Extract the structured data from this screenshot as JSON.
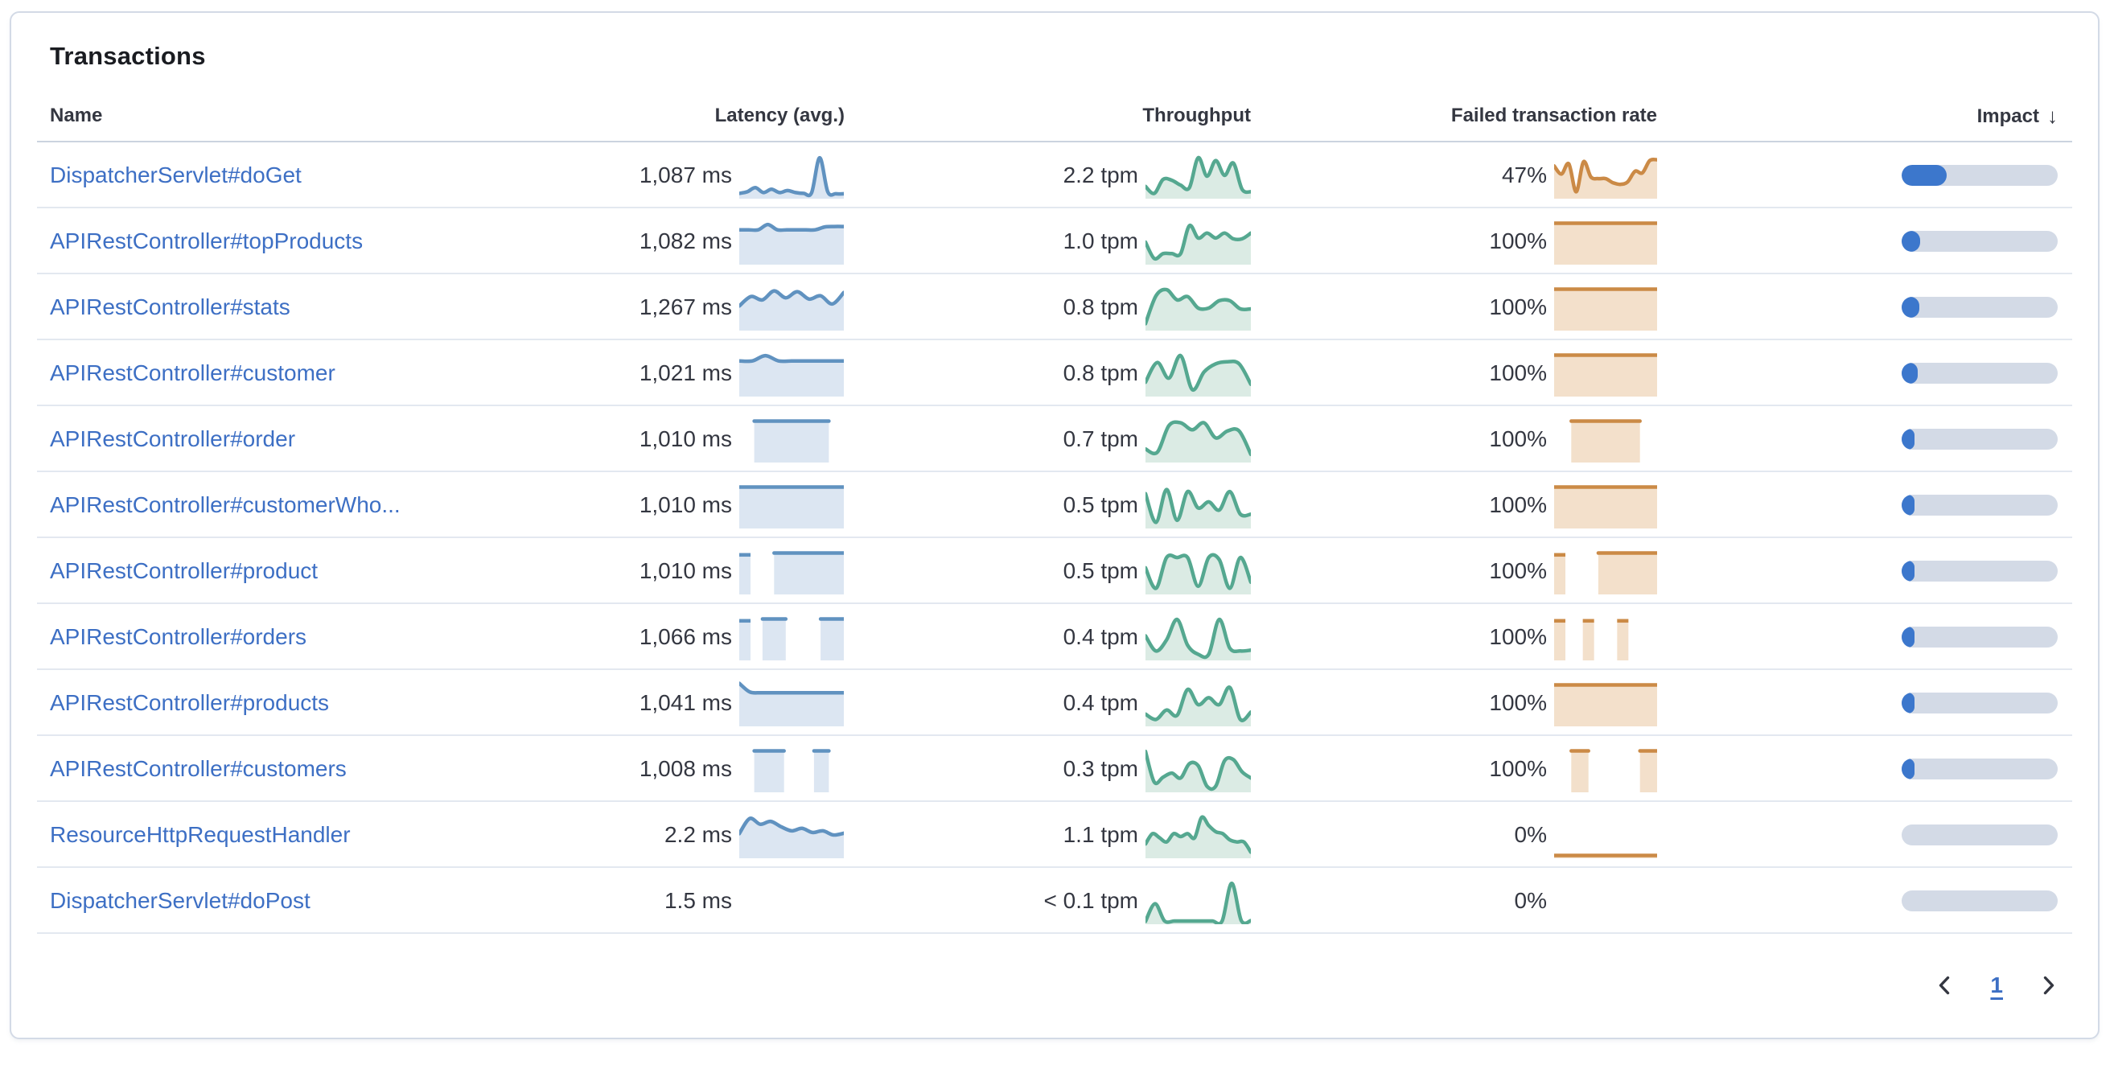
{
  "panel": {
    "title": "Transactions"
  },
  "table": {
    "columns": {
      "name": "Name",
      "latency": "Latency (avg.)",
      "throughput": "Throughput",
      "failed_rate": "Failed transaction rate",
      "impact": "Impact"
    },
    "sort": {
      "column": "impact",
      "direction": "desc",
      "icon": "sort-descending-icon",
      "arrow_glyph": "↓"
    },
    "rows": [
      {
        "name": "DispatcherServlet#doGet",
        "latency": "1,087 ms",
        "latency_spark": [
          0.08,
          0.12,
          0.22,
          0.1,
          0.18,
          0.1,
          0.15,
          0.1,
          0.08,
          0.1,
          0.95,
          0.12,
          0.07,
          0.07
        ],
        "throughput": "2.2 tpm",
        "throughput_spark": [
          0.25,
          0.08,
          0.42,
          0.4,
          0.28,
          0.22,
          0.95,
          0.5,
          0.88,
          0.52,
          0.82,
          0.18,
          0.12
        ],
        "failed_rate": "47%",
        "failed_rate_spark": [
          0.75,
          0.55,
          0.8,
          0.12,
          0.85,
          0.48,
          0.44,
          0.44,
          0.34,
          0.3,
          0.36,
          0.62,
          0.58,
          0.88,
          0.9
        ],
        "impact_pct": 29
      },
      {
        "name": "APIRestController#topProducts",
        "latency": "1,082 ms",
        "latency_spark": [
          0.8,
          0.8,
          0.8,
          0.93,
          0.8,
          0.8,
          0.8,
          0.8,
          0.8,
          0.87,
          0.88,
          0.88
        ],
        "throughput": "1.0 tpm",
        "throughput_spark": [
          0.5,
          0.1,
          0.22,
          0.22,
          0.22,
          0.9,
          0.6,
          0.72,
          0.6,
          0.72,
          0.58,
          0.58,
          0.72
        ],
        "failed_rate": "100%",
        "failed_rate_spark": [
          0.96,
          0.96,
          0.96,
          0.96,
          0.96,
          0.96,
          0.96,
          0.96,
          0.96,
          0.96
        ],
        "impact_pct": 12
      },
      {
        "name": "APIRestController#stats",
        "latency": "1,267 ms",
        "latency_spark": [
          0.55,
          0.78,
          0.7,
          0.92,
          0.75,
          0.9,
          0.72,
          0.8,
          0.6,
          0.88
        ],
        "throughput": "0.8 tpm",
        "throughput_spark": [
          0.12,
          0.8,
          0.95,
          0.7,
          0.78,
          0.5,
          0.5,
          0.68,
          0.68,
          0.48,
          0.48
        ],
        "failed_rate": "100%",
        "failed_rate_spark": [
          0.96,
          0.96,
          0.96,
          0.96,
          0.96,
          0.96,
          0.96,
          0.96,
          0.96,
          0.96
        ],
        "impact_pct": 11.5
      },
      {
        "name": "APIRestController#customer",
        "latency": "1,021 ms",
        "latency_spark": [
          0.82,
          0.82,
          0.95,
          0.82,
          0.82,
          0.82,
          0.82,
          0.82,
          0.82
        ],
        "throughput": "0.8 tpm",
        "throughput_spark": [
          0.3,
          0.78,
          0.4,
          0.95,
          0.12,
          0.55,
          0.75,
          0.8,
          0.75,
          0.25
        ],
        "failed_rate": "100%",
        "failed_rate_spark": [
          0.96,
          0.96,
          0.96,
          0.96,
          0.96,
          0.96,
          0.96,
          0.96,
          0.96,
          0.96
        ],
        "impact_pct": 10.5
      },
      {
        "name": "APIRestController#order",
        "latency": "1,010 ms",
        "latency_spark": [
          null,
          0.96,
          0.96,
          0.96,
          0.96,
          0.96,
          0.96,
          null
        ],
        "throughput": "0.7 tpm",
        "throughput_spark": [
          0.28,
          0.2,
          0.85,
          0.92,
          0.75,
          0.92,
          0.55,
          0.72,
          0.72,
          0.15
        ],
        "failed_rate": "100%",
        "failed_rate_spark": [
          null,
          0.96,
          0.96,
          0.96,
          0.96,
          0.96,
          null
        ],
        "impact_pct": 8.5
      },
      {
        "name": "APIRestController#customerWho...",
        "latency": "1,010 ms",
        "latency_spark": [
          0.96,
          0.96,
          0.96,
          0.96,
          0.96,
          0.96,
          0.96,
          0.96
        ],
        "throughput": "0.5 tpm",
        "throughput_spark": [
          0.8,
          0.1,
          0.9,
          0.15,
          0.85,
          0.45,
          0.6,
          0.4,
          0.85,
          0.3,
          0.3
        ],
        "failed_rate": "100%",
        "failed_rate_spark": [
          0.96,
          0.96,
          0.96,
          0.96,
          0.96,
          0.96,
          0.96,
          0.96,
          0.96,
          0.96
        ],
        "impact_pct": 6.5
      },
      {
        "name": "APIRestController#product",
        "latency": "1,010 ms",
        "latency_spark": [
          0.96,
          null,
          null,
          0.96,
          0.96,
          0.96,
          0.96,
          0.96,
          0.96,
          0.96
        ],
        "throughput": "0.5 tpm",
        "throughput_spark": [
          0.6,
          0.1,
          0.85,
          0.85,
          0.85,
          0.15,
          0.85,
          0.8,
          0.1,
          0.85,
          0.25
        ],
        "failed_rate": "100%",
        "failed_rate_spark": [
          0.96,
          null,
          null,
          0.96,
          0.96,
          0.96,
          0.96,
          0.96
        ],
        "impact_pct": 6
      },
      {
        "name": "APIRestController#orders",
        "latency": "1,066 ms",
        "latency_spark": [
          0.96,
          null,
          0.96,
          0.96,
          0.96,
          null,
          null,
          0.96,
          0.96,
          0.96
        ],
        "throughput": "0.4 tpm",
        "throughput_spark": [
          0.55,
          0.18,
          0.45,
          0.95,
          0.32,
          0.1,
          0.1,
          0.95,
          0.25,
          0.18,
          0.2
        ],
        "failed_rate": "100%",
        "failed_rate_spark": [
          0.96,
          null,
          0.96,
          null,
          0.96,
          null,
          null
        ],
        "impact_pct": 5.5
      },
      {
        "name": "APIRestController#products",
        "latency": "1,041 ms",
        "latency_spark": [
          1,
          0.79,
          0.77,
          0.77,
          0.77,
          0.77,
          0.77,
          0.77,
          0.77,
          0.77,
          0.77
        ],
        "throughput": "0.4 tpm",
        "throughput_spark": [
          0.25,
          0.12,
          0.35,
          0.22,
          0.85,
          0.48,
          0.65,
          0.48,
          0.9,
          0.12,
          0.3
        ],
        "failed_rate": "100%",
        "failed_rate_spark": [
          0.96,
          0.96,
          0.96,
          0.96,
          0.96,
          0.96,
          0.96,
          0.96,
          0.96,
          0.96
        ],
        "impact_pct": 5.5
      },
      {
        "name": "APIRestController#customers",
        "latency": "1,008 ms",
        "latency_spark": [
          null,
          0.96,
          0.96,
          0.96,
          null,
          0.96,
          0.96,
          null
        ],
        "throughput": "0.3 tpm",
        "throughput_spark": [
          0.95,
          0.2,
          0.32,
          0.42,
          0.3,
          0.65,
          0.6,
          0.1,
          0.1,
          0.72,
          0.75,
          0.45,
          0.3
        ],
        "failed_rate": "100%",
        "failed_rate_spark": [
          null,
          0.96,
          0.96,
          null,
          null,
          0.96,
          0.96
        ],
        "impact_pct": 5
      },
      {
        "name": "ResourceHttpRequestHandler",
        "latency": "2.2 ms",
        "latency_spark": [
          0.55,
          0.92,
          0.78,
          0.85,
          0.72,
          0.62,
          0.68,
          0.58,
          0.62,
          0.52,
          0.56
        ],
        "throughput": "1.1 tpm",
        "throughput_spark": [
          0.3,
          0.55,
          0.45,
          0.35,
          0.55,
          0.48,
          0.55,
          0.45,
          0.95,
          0.75,
          0.6,
          0.55,
          0.4,
          0.35,
          0.35,
          0.1
        ],
        "failed_rate": "0%",
        "failed_rate_spark": [
          0.02,
          0.02,
          0.02,
          0.02,
          0.02,
          0.02,
          0.02,
          0.02
        ],
        "impact_pct": 0
      },
      {
        "name": "DispatcherServlet#doPost",
        "latency": "1.5 ms",
        "latency_spark": null,
        "throughput": "< 0.1 tpm",
        "throughput_spark": [
          0.02,
          0.45,
          0.03,
          0.03,
          0.03,
          0.03,
          0.03,
          0.03,
          0.03,
          0.95,
          0.04,
          0.04
        ],
        "failed_rate": "0%",
        "failed_rate_spark": null,
        "impact_pct": 0
      }
    ]
  },
  "pagination": {
    "current_page": "1",
    "prev_icon": "chevron-left-icon",
    "next_icon": "chevron-right-icon"
  },
  "colors": {
    "latency": {
      "stroke": "#6092c0",
      "fill": "#dce6f2"
    },
    "throughput": {
      "stroke": "#55a890",
      "fill": "#dbebe4"
    },
    "failed": {
      "stroke": "#cb8a46",
      "fill": "#f3e0cb"
    },
    "impact_fill": "#3c77cc",
    "impact_track": "#d3dae6",
    "link": "#3d6fc4",
    "text": "#343741"
  }
}
